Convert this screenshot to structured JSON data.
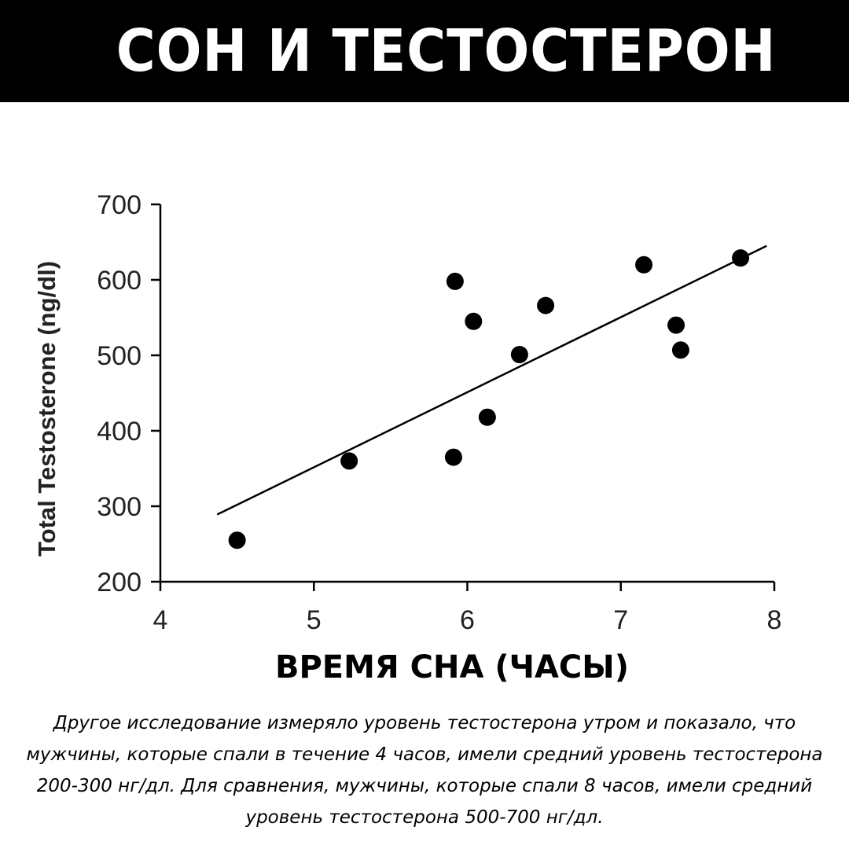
{
  "header": {
    "title": "СОН И ТЕСТОСТЕРОН"
  },
  "chart_data": {
    "type": "scatter",
    "title": "",
    "xlabel": "ВРЕМЯ СНА (ЧАСЫ)",
    "ylabel": "Total Testosterone (ng/dl)",
    "xlim": [
      4,
      8
    ],
    "ylim": [
      200,
      700
    ],
    "xticks": [
      "4",
      "5",
      "6",
      "7",
      "8"
    ],
    "yticks": [
      "200",
      "300",
      "400",
      "500",
      "600",
      "700"
    ],
    "grid": false,
    "points": [
      {
        "x": 4.5,
        "y": 255
      },
      {
        "x": 5.23,
        "y": 360
      },
      {
        "x": 5.91,
        "y": 365
      },
      {
        "x": 5.92,
        "y": 598
      },
      {
        "x": 6.04,
        "y": 545
      },
      {
        "x": 6.13,
        "y": 418
      },
      {
        "x": 6.34,
        "y": 501
      },
      {
        "x": 6.51,
        "y": 566
      },
      {
        "x": 7.15,
        "y": 620
      },
      {
        "x": 7.36,
        "y": 540
      },
      {
        "x": 7.39,
        "y": 507
      },
      {
        "x": 7.78,
        "y": 629
      }
    ],
    "trendline": {
      "x": [
        4.37,
        7.95
      ],
      "y": [
        289,
        645
      ]
    }
  },
  "caption": {
    "text": "Другое исследование измеряло уровень тестостерона утром и показало, что мужчины, которые спали в течение 4 часов, имели средний уровень тестостерона 200-300 нг/дл. Для сравнения, мужчины, которые спали 8 часов, имели средний уровень тестостерона 500-700 нг/дл."
  }
}
